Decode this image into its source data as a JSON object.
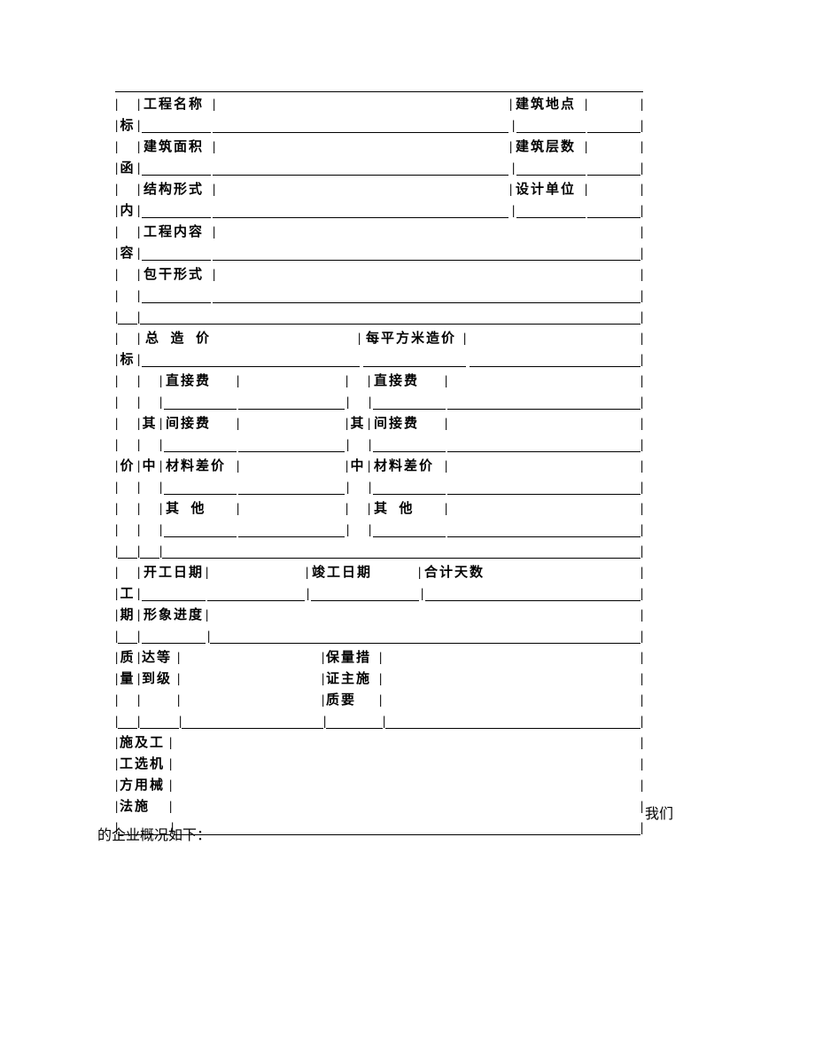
{
  "section1_side": [
    "标",
    "函",
    "内",
    "容"
  ],
  "section1_rows": [
    {
      "l1": "工程名称",
      "l2": "建筑地点"
    },
    {
      "l1": "建筑面积",
      "l2": "建筑层数"
    },
    {
      "l1": "结构形式",
      "l2": "设计单位"
    },
    {
      "l1": "工程内容",
      "full": true
    },
    {
      "l1": "包干形式",
      "full": true
    }
  ],
  "section2_side": [
    "标",
    "价"
  ],
  "section2_inner": [
    "其",
    "中"
  ],
  "section2_top": {
    "l1": "总  造  价",
    "l2": "每平方米造价"
  },
  "section2_rows": [
    {
      "l1": "直接费",
      "l2": "直接费"
    },
    {
      "l1": "间接费",
      "l2": "间接费"
    },
    {
      "l1": "材料差价",
      "l2": "材料差价"
    },
    {
      "l1": "其  他",
      "l2": "其  他"
    }
  ],
  "section3_side": [
    "工",
    "期"
  ],
  "section3_row1": {
    "l1": "开工日期",
    "l2": "竣工日期",
    "l3": "合计天数"
  },
  "section3_row2": {
    "l1": "形象进度"
  },
  "section4_side": [
    "质",
    "量"
  ],
  "section4_left": [
    "达等",
    "到级"
  ],
  "section4_right": [
    "保量措",
    "证主施",
    "质要"
  ],
  "section5_side": [
    "施及工",
    "工选机",
    "方用械",
    "法施"
  ],
  "footer": {
    "part1": "我们",
    "part2": "的企业概况如下："
  },
  "colors": {
    "text": "#000000",
    "bg": "#ffffff"
  },
  "dims": {
    "total_w": 600,
    "col_side": 20,
    "col_label": 80,
    "col_val": 200,
    "gap": 10
  }
}
